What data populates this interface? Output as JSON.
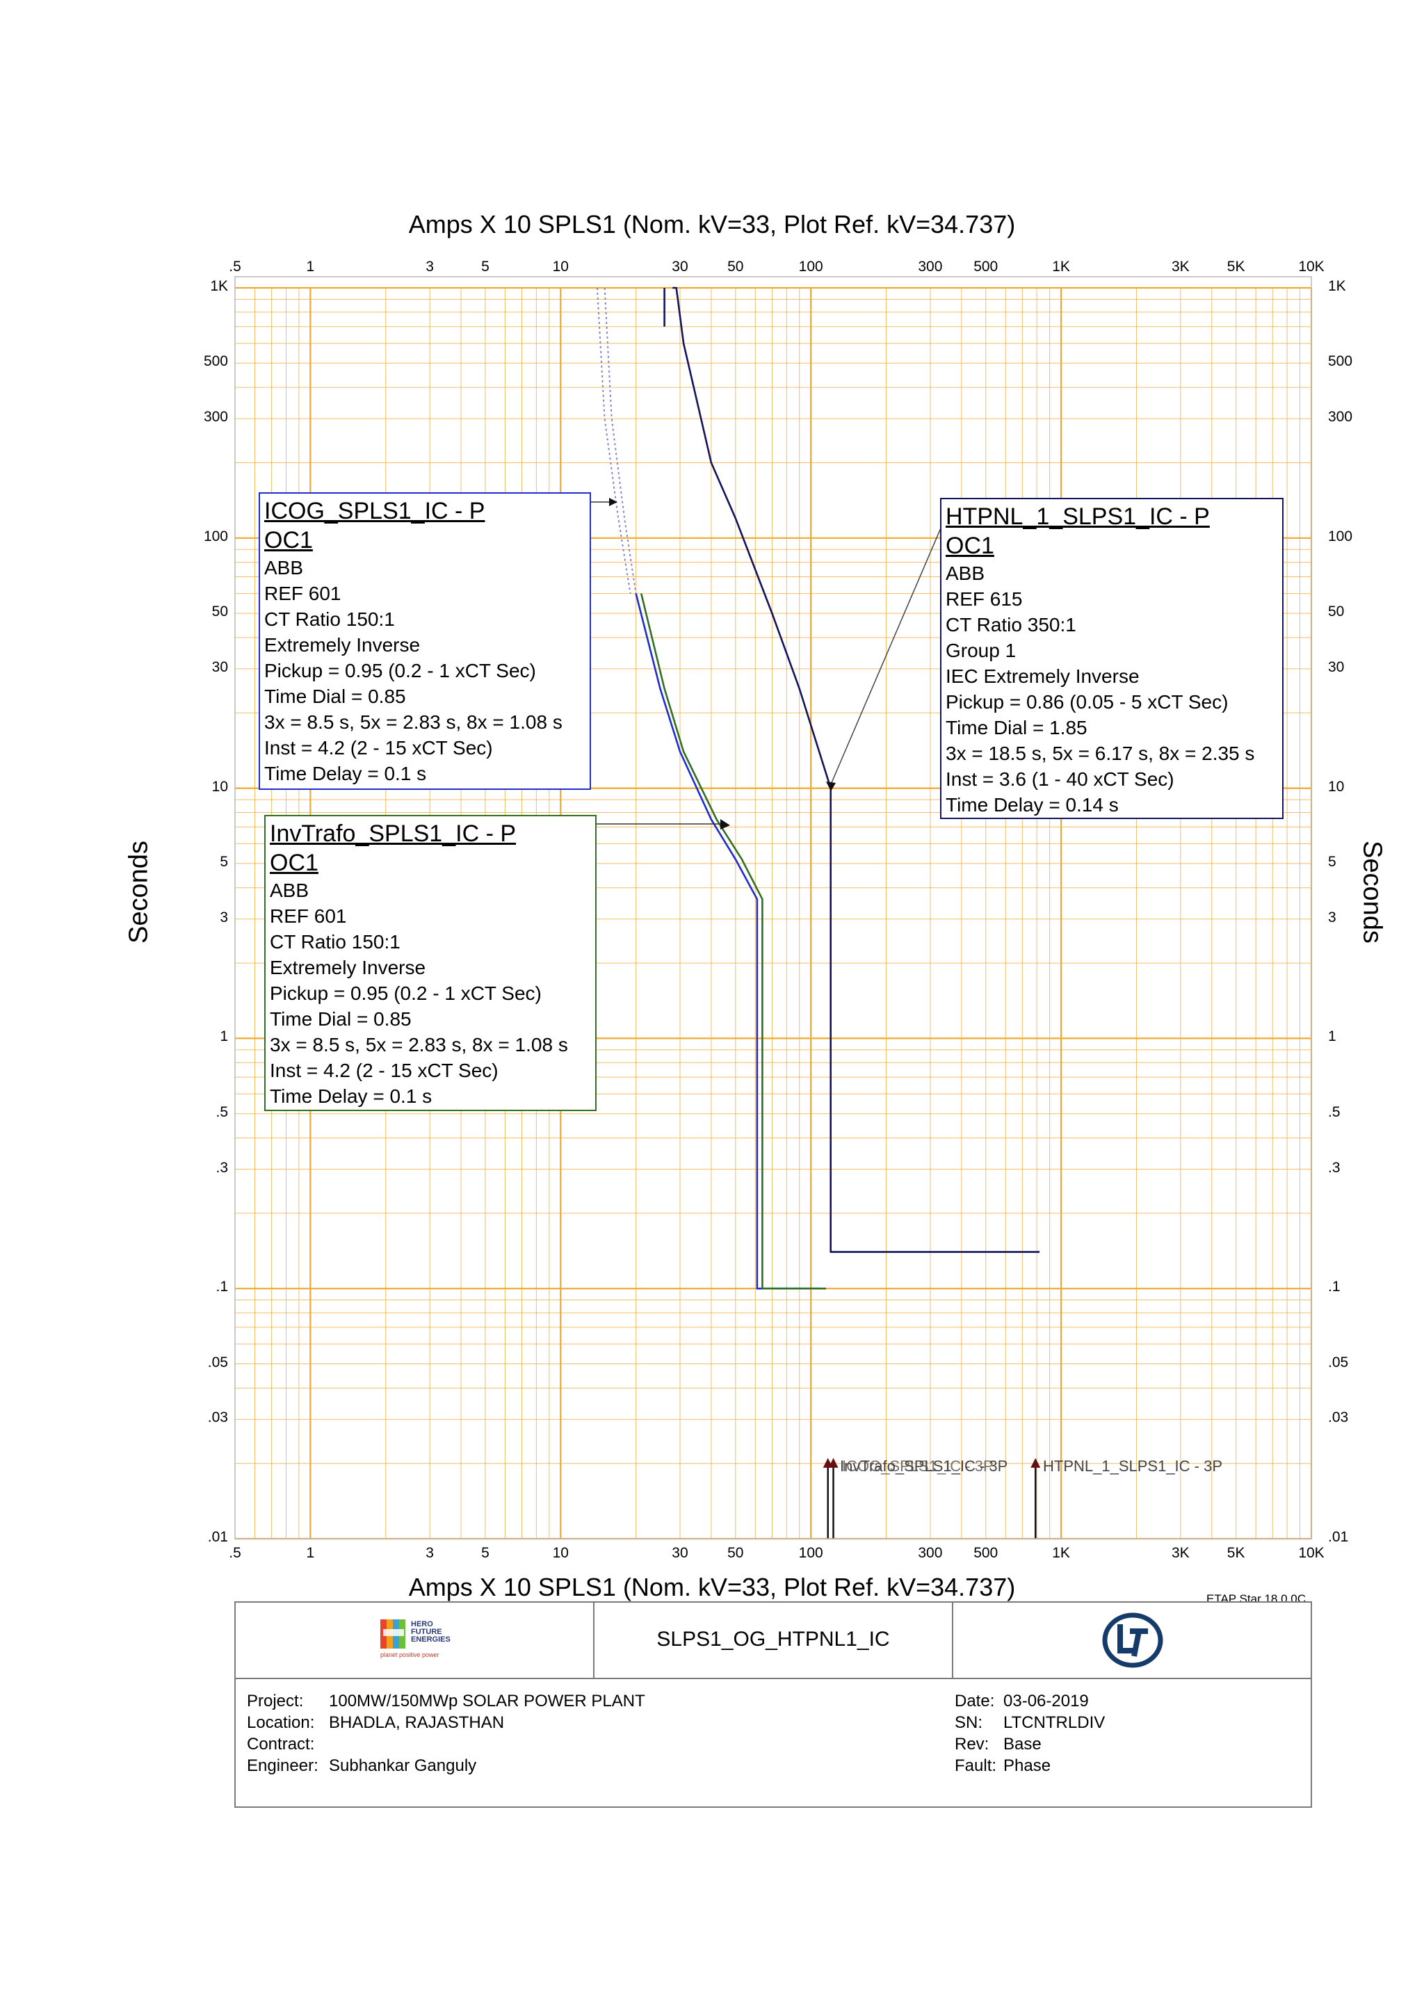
{
  "chart_data": {
    "type": "line",
    "title": "Amps  X  10   SPLS1 (Nom. kV=33, Plot Ref. kV=34.737)",
    "xlabel": "Amps  X  10   SPLS1 (Nom. kV=33, Plot Ref. kV=34.737)",
    "ylabel": "Seconds",
    "xscale": "log",
    "yscale": "log",
    "xlim": [
      0.5,
      10000
    ],
    "ylim": [
      0.01,
      1000
    ],
    "grid": true,
    "colors": {
      "grid": "#f0a830",
      "blue": "#1d2bd0",
      "green": "#2e6f23",
      "navy": "#11135e",
      "dotted": "#7f84c8"
    },
    "x_ticks": [
      {
        "v": 0.5,
        "label": ".5"
      },
      {
        "v": 1,
        "label": "1"
      },
      {
        "v": 3,
        "label": "3"
      },
      {
        "v": 5,
        "label": "5"
      },
      {
        "v": 10,
        "label": "10"
      },
      {
        "v": 30,
        "label": "30"
      },
      {
        "v": 50,
        "label": "50"
      },
      {
        "v": 100,
        "label": "100"
      },
      {
        "v": 300,
        "label": "300"
      },
      {
        "v": 500,
        "label": "500"
      },
      {
        "v": 1000,
        "label": "1K"
      },
      {
        "v": 3000,
        "label": "3K"
      },
      {
        "v": 5000,
        "label": "5K"
      },
      {
        "v": 10000,
        "label": "10K"
      }
    ],
    "y_ticks": [
      {
        "v": 1000,
        "label": "1K"
      },
      {
        "v": 500,
        "label": "500"
      },
      {
        "v": 300,
        "label": "300"
      },
      {
        "v": 100,
        "label": "100"
      },
      {
        "v": 50,
        "label": "50"
      },
      {
        "v": 30,
        "label": "30"
      },
      {
        "v": 10,
        "label": "10"
      },
      {
        "v": 5,
        "label": "5"
      },
      {
        "v": 3,
        "label": "3"
      },
      {
        "v": 1,
        "label": "1"
      },
      {
        "v": 0.5,
        "label": ".5"
      },
      {
        "v": 0.3,
        "label": ".3"
      },
      {
        "v": 0.1,
        "label": ".1"
      },
      {
        "v": 0.05,
        "label": ".05"
      },
      {
        "v": 0.03,
        "label": ".03"
      },
      {
        "v": 0.01,
        "label": ".01"
      }
    ],
    "series": [
      {
        "color": "#1d2bd0",
        "points": [
          [
            20,
            60
          ],
          [
            25,
            25
          ],
          [
            30,
            14
          ],
          [
            40,
            7.5
          ],
          [
            50,
            5.2
          ],
          [
            61,
            3.6
          ],
          [
            61,
            0.1
          ],
          [
            110,
            0.1
          ]
        ]
      },
      {
        "color": "#2e6f23",
        "points": [
          [
            21,
            60
          ],
          [
            26,
            25
          ],
          [
            31,
            14
          ],
          [
            42,
            7.5
          ],
          [
            53,
            5.2
          ],
          [
            64,
            3.6
          ],
          [
            64,
            0.1
          ],
          [
            115,
            0.1
          ]
        ]
      },
      {
        "color": "#11135e",
        "points": [
          [
            28,
            1000
          ],
          [
            29,
            1000
          ],
          [
            31,
            600
          ],
          [
            40,
            200
          ],
          [
            50,
            120
          ],
          [
            70,
            50
          ],
          [
            90,
            25
          ],
          [
            120,
            10
          ],
          [
            120,
            9.2
          ],
          [
            120,
            0.14
          ],
          [
            820,
            0.14
          ]
        ]
      },
      {
        "color": "#11135e",
        "points": [
          [
            26,
            1000
          ],
          [
            26,
            700
          ]
        ]
      },
      {
        "color": "#7f84c8",
        "dashed": true,
        "points": [
          [
            15,
            1000
          ],
          [
            16,
            300
          ],
          [
            18,
            120
          ],
          [
            20,
            60
          ]
        ]
      },
      {
        "color": "#7f84c8",
        "dashed": true,
        "points": [
          [
            14,
            1000
          ],
          [
            15,
            300
          ],
          [
            17,
            120
          ],
          [
            19,
            60
          ]
        ]
      }
    ],
    "fault_markers": [
      {
        "x": 117,
        "label": "InvTrafo_SPLS1_IC - 3P",
        "label_alt": "ICOG_SPLS1_IC - 3P"
      },
      {
        "x": 123,
        "label": ""
      },
      {
        "x": 790,
        "label": "HTPNL_1_SLPS1_IC - 3P"
      }
    ]
  },
  "relays": {
    "icog": {
      "header1": "ICOG_SPLS1_IC - P",
      "header2": "OC1",
      "lines": [
        "ABB",
        "REF 601",
        "CT Ratio 150:1",
        "Extremely Inverse",
        "Pickup = 0.95 (0.2 - 1  xCT Sec)",
        "Time Dial = 0.85",
        "3x = 8.5 s, 5x = 2.83 s, 8x = 1.08 s",
        "Inst = 4.2 (2 - 15  xCT Sec)",
        "Time Delay = 0.1 s"
      ]
    },
    "invtrafo": {
      "header1": "InvTrafo_SPLS1_IC - P",
      "header2": "OC1",
      "lines": [
        "ABB",
        "REF 601",
        "CT Ratio 150:1",
        "Extremely Inverse",
        "Pickup = 0.95 (0.2 - 1  xCT Sec)",
        "Time Dial = 0.85",
        "3x = 8.5 s, 5x = 2.83 s, 8x = 1.08 s",
        "Inst = 4.2 (2 - 15  xCT Sec)",
        "Time Delay = 0.1 s"
      ]
    },
    "htpnl": {
      "header1": "HTPNL_1_SLPS1_IC - P",
      "header2": "OC1",
      "lines": [
        "ABB",
        "REF 615",
        "CT Ratio 350:1",
        "Group 1",
        "IEC Extremely Inverse",
        "Pickup = 0.86 (0.05 - 5  xCT Sec)",
        "Time Dial = 1.85",
        "3x = 18.5 s, 5x = 6.17 s, 8x = 2.35 s",
        "Inst = 3.6 (1 - 40  xCT Sec)",
        "Time Delay = 0.14 s"
      ]
    }
  },
  "software": "ETAP Star 18.0.0C",
  "title_block": {
    "logo_text": [
      "HERO",
      "FUTURE",
      "ENERGIES"
    ],
    "logo_tagline": "planet positive power",
    "drawing_title": "SLPS1_OG_HTPNL1_IC",
    "project_label": "Project:",
    "project": "100MW/150MWp SOLAR POWER PLANT",
    "location_label": "Location:",
    "location": "BHADLA, RAJASTHAN",
    "contract_label": "Contract:",
    "contract": "",
    "engineer_label": "Engineer:",
    "engineer": "Subhankar Ganguly",
    "date_label": "Date:",
    "date": "03-06-2019",
    "sn_label": "SN:",
    "sn": "LTCNTRLDIV",
    "rev_label": "Rev:",
    "rev": "Base",
    "fault_label": "Fault:",
    "fault": "Phase"
  }
}
